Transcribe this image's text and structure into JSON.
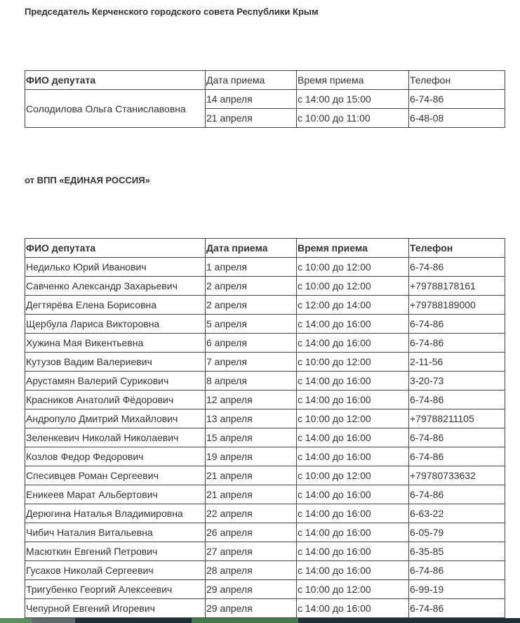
{
  "chairman_heading": "Председатель Керченского городского совета Республики Крым",
  "chairman_table": {
    "headers": [
      "ФИО депутата",
      "Дата приема",
      "Время приема",
      "Телефон"
    ],
    "name": "Солодилова Ольга Станиславовна",
    "rows": [
      {
        "date": "14 апреля",
        "time": "с 14:00 до 15:00",
        "phone": "6-74-86"
      },
      {
        "date": "21 апреля",
        "time": "с 10:00 до 11:00",
        "phone": "6-48-08"
      }
    ]
  },
  "party_heading": "от ВПП «ЕДИНАЯ РОССИЯ»",
  "party_table": {
    "headers": [
      "ФИО депутата",
      "Дата приема",
      "Время приема",
      "Телефон"
    ],
    "rows": [
      [
        "Недилько Юрий Иванович",
        "1 апреля",
        "с 10:00 до 12:00",
        "6-74-86"
      ],
      [
        "Савченко Александр Захарьевич",
        "2 апреля",
        "с 10:00 до 12:00",
        "+79788178161"
      ],
      [
        "Дегтярёва Елена Борисовна",
        "2 апреля",
        "с 12:00 до 14:00",
        "+79788189000"
      ],
      [
        "Щербула Лариса Викторовна",
        "5 апреля",
        "с 14:00 до 16:00",
        "6-74-86"
      ],
      [
        "Хужина Мая Викентьевна",
        "6 апреля",
        "с 14:00 до 16:00",
        "6-74-86"
      ],
      [
        "Кутузов Вадим Валериевич",
        "7 апреля",
        "с 10:00 до 12:00",
        "2-11-56"
      ],
      [
        "Арустамян Валерий Сурикович",
        "8 апреля",
        "с 14:00 до 16:00",
        "3-20-73"
      ],
      [
        "Красников Анатолий Фёдорович",
        "12 апреля",
        "с 14:00 до 16:00",
        "6-74-86"
      ],
      [
        "Андропуло Дмитрий Михайлович",
        "13 апреля",
        "с 10:00 до 12:00",
        "+79788211105"
      ],
      [
        "Зеленкевич Николай Николаевич",
        "15 апреля",
        "с 14:00 до 16:00",
        "6-74-86"
      ],
      [
        "Козлов Федор Федорович",
        "19 апреля",
        "с 14:00 до 16:00",
        "6-74-86"
      ],
      [
        "Спесивцев Роман Сергеевич",
        "21 апреля",
        "с 10:00 до 12:00",
        "+79780733632"
      ],
      [
        "Еникеев Марат Альбертович",
        "21 апреля",
        "с 14:00 до 16:00",
        "6-74-86"
      ],
      [
        "Дерюгина Наталья Владимировна",
        "22 апреля",
        "с 14:00 до 16:00",
        "6-63-22"
      ],
      [
        "Чибич Наталия Витальевна",
        "26 апреля",
        "с 14:00 до 16:00",
        "6-05-79"
      ],
      [
        "Масюткин Евгений Петрович",
        "27 апреля",
        "с 14:00 до 16:00",
        "6-35-85"
      ],
      [
        "Гусаков Николай Сергеевич",
        "28 апреля",
        "с 14:00 до 16:00",
        "6-74-86"
      ],
      [
        "Тригубенко Георгий Алексеевич",
        "29 апреля",
        "с 10:00 до 12:00",
        "6-99-19"
      ],
      [
        "Чепурной Евгений Игоревич",
        "29 апреля",
        "с 14:00 до 16:00",
        "6-74-86"
      ]
    ]
  },
  "footer_colors": [
    "#5a8f5e",
    "#5f6a6d",
    "#1f3138",
    "#3f7b4b",
    "#1f3138"
  ]
}
